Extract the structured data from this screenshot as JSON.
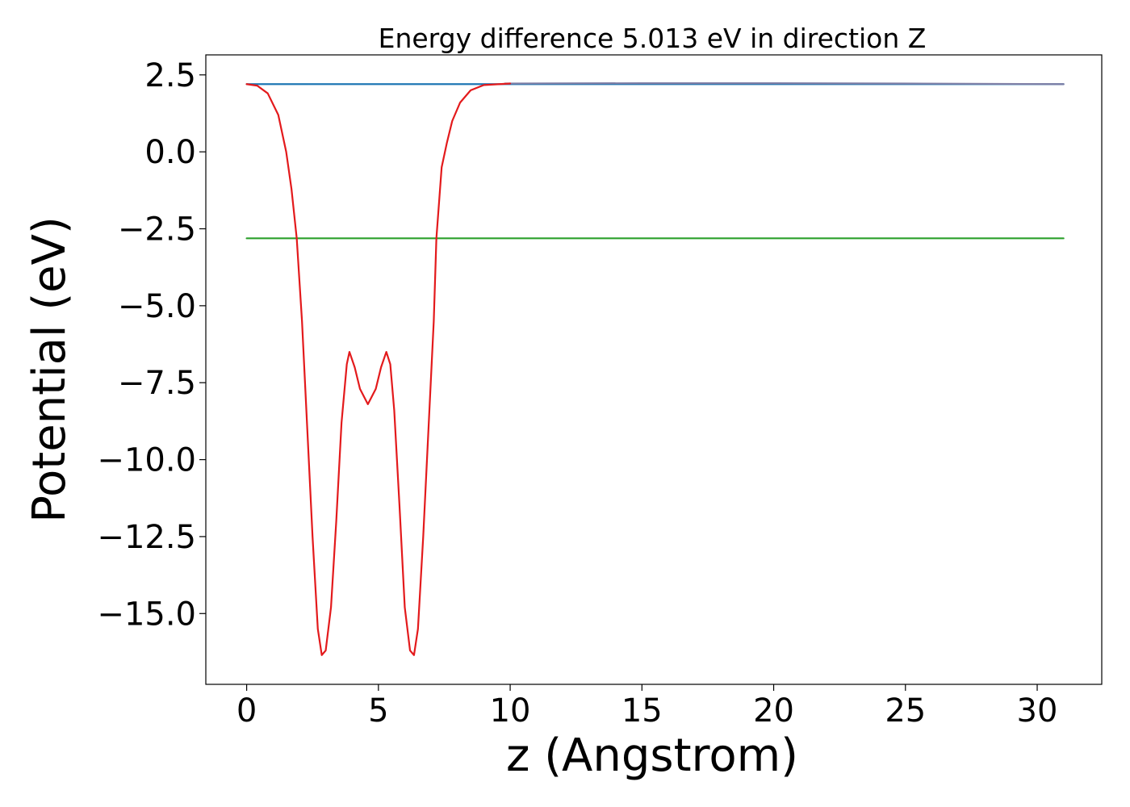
{
  "chart_data": {
    "type": "line",
    "title": "Energy difference 5.013 eV in direction Z",
    "xlabel": "z (Angstrom)",
    "ylabel": "Potential (eV)",
    "xlim": [
      -1.55,
      32.45
    ],
    "ylim": [
      -17.3,
      3.15
    ],
    "xticks": [
      0,
      5,
      10,
      15,
      20,
      25,
      30
    ],
    "xtick_labels": [
      "0",
      "5",
      "10",
      "15",
      "20",
      "25",
      "30"
    ],
    "yticks": [
      2.5,
      0.0,
      -2.5,
      -5.0,
      -7.5,
      -10.0,
      -12.5,
      -15.0
    ],
    "ytick_labels": [
      "2.5",
      "0.0",
      "−2.5",
      "−5.0",
      "−7.5",
      "−10.0",
      "−12.5",
      "−15.0"
    ],
    "grid": false,
    "legend": "none",
    "series": [
      {
        "color": "#1f77b4",
        "points": [
          [
            0.0,
            2.2
          ],
          [
            9.5,
            2.2
          ],
          [
            31.0,
            2.2
          ]
        ]
      },
      {
        "color": "#2ca02c",
        "points": [
          [
            0.0,
            -2.81
          ],
          [
            31.0,
            -2.81
          ]
        ]
      },
      {
        "color": "#7f7fa6",
        "points": [
          [
            9.8,
            2.22
          ],
          [
            15.0,
            2.23
          ],
          [
            20.0,
            2.23
          ],
          [
            25.0,
            2.22
          ],
          [
            31.0,
            2.2
          ]
        ]
      },
      {
        "color": "#e31a1c",
        "points": [
          [
            0.0,
            2.2
          ],
          [
            0.4,
            2.15
          ],
          [
            0.8,
            1.9
          ],
          [
            1.2,
            1.2
          ],
          [
            1.5,
            0.0
          ],
          [
            1.7,
            -1.2
          ],
          [
            1.9,
            -2.81
          ],
          [
            2.1,
            -5.5
          ],
          [
            2.3,
            -9.0
          ],
          [
            2.5,
            -12.5
          ],
          [
            2.7,
            -15.5
          ],
          [
            2.85,
            -16.35
          ],
          [
            3.0,
            -16.2
          ],
          [
            3.2,
            -14.8
          ],
          [
            3.4,
            -12.0
          ],
          [
            3.6,
            -8.8
          ],
          [
            3.8,
            -6.9
          ],
          [
            3.9,
            -6.5
          ],
          [
            4.1,
            -7.0
          ],
          [
            4.3,
            -7.7
          ],
          [
            4.6,
            -8.2
          ],
          [
            4.9,
            -7.7
          ],
          [
            5.1,
            -7.0
          ],
          [
            5.3,
            -6.5
          ],
          [
            5.45,
            -6.9
          ],
          [
            5.6,
            -8.4
          ],
          [
            5.8,
            -11.5
          ],
          [
            6.0,
            -14.8
          ],
          [
            6.2,
            -16.2
          ],
          [
            6.35,
            -16.35
          ],
          [
            6.5,
            -15.5
          ],
          [
            6.7,
            -12.5
          ],
          [
            6.9,
            -9.0
          ],
          [
            7.1,
            -5.5
          ],
          [
            7.2,
            -2.81
          ],
          [
            7.4,
            -0.5
          ],
          [
            7.6,
            0.3
          ],
          [
            7.8,
            1.0
          ],
          [
            8.1,
            1.6
          ],
          [
            8.5,
            2.0
          ],
          [
            9.0,
            2.17
          ],
          [
            10.0,
            2.22
          ]
        ]
      }
    ]
  }
}
